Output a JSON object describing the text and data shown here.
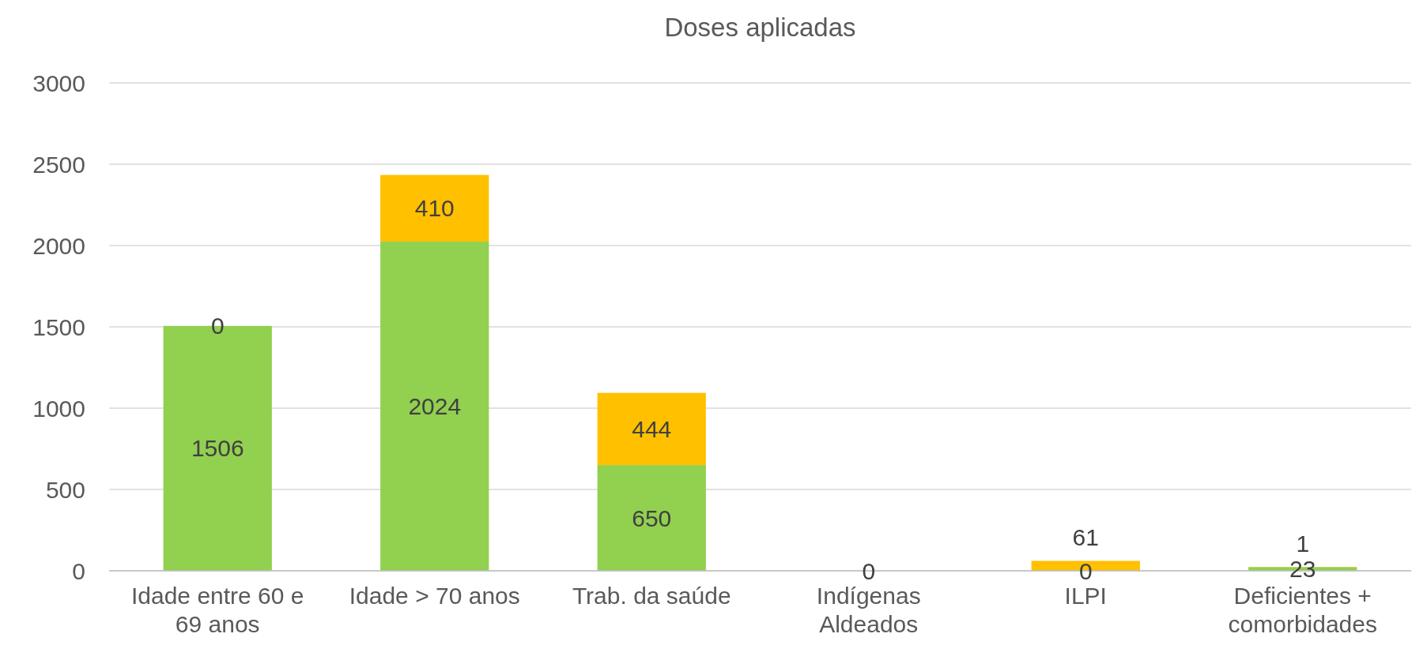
{
  "chart_data": {
    "type": "bar",
    "title": "Doses aplicadas",
    "stacked": true,
    "categories": [
      "Idade entre 60 e 69 anos",
      "Idade > 70 anos",
      "Trab. da saúde",
      "Indígenas Aldeados",
      "ILPI",
      "Deficientes + comorbidades"
    ],
    "series": [
      {
        "color": "#92d050",
        "values": [
          1506,
          2024,
          650,
          0,
          0,
          23
        ],
        "value_labels": [
          "1506",
          "2024",
          "650",
          "0",
          "0",
          "23"
        ]
      },
      {
        "color": "#ffc000",
        "values": [
          0,
          410,
          444,
          0,
          61,
          1
        ],
        "value_labels": [
          "0",
          "410",
          "444",
          null,
          "61",
          "1"
        ]
      }
    ],
    "ylim": [
      0,
      3000
    ],
    "yticks": [
      0,
      500,
      1000,
      1500,
      2000,
      2500,
      3000
    ],
    "grid": "y"
  }
}
